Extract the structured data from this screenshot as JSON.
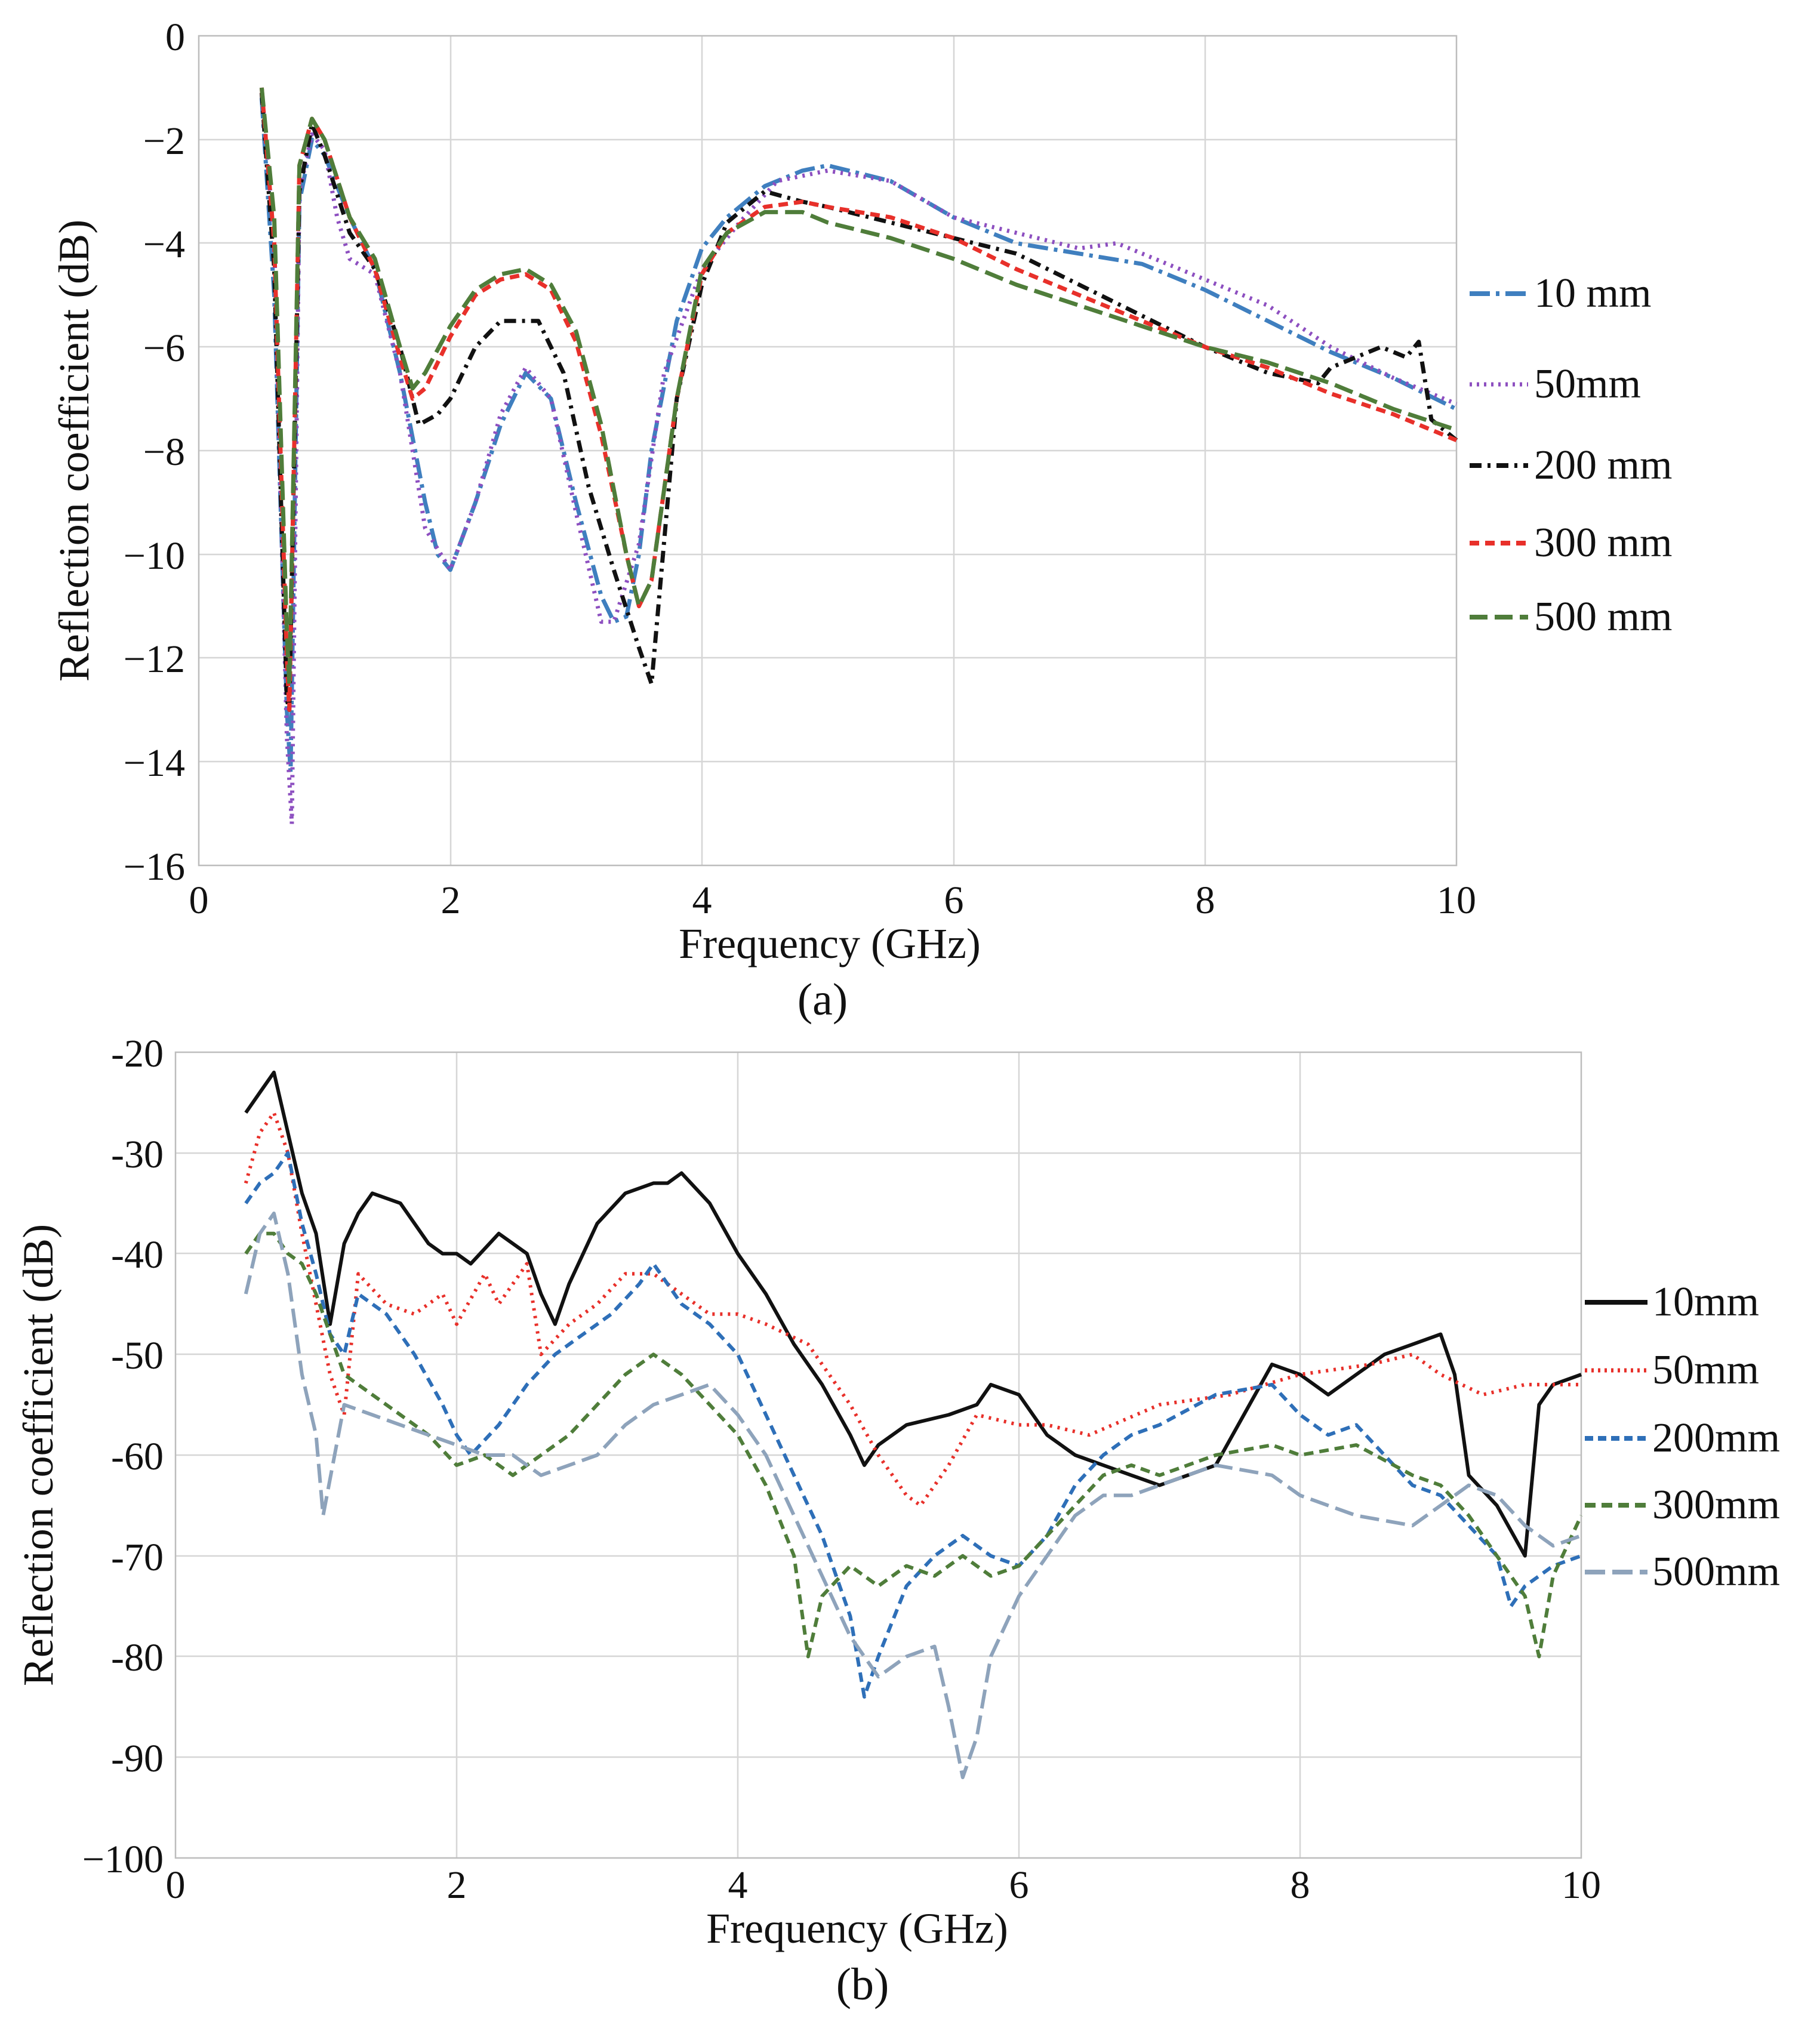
{
  "chart_data": [
    {
      "type": "line",
      "panel": "(a)",
      "xlabel": "Frequency (GHz)",
      "ylabel": "Reflection coefficient (dB)",
      "xlim": [
        0,
        10
      ],
      "ylim": [
        -16,
        0
      ],
      "xticks": [
        0,
        2,
        4,
        6,
        8,
        10
      ],
      "yticks": [
        0,
        -2,
        -4,
        -6,
        -8,
        -10,
        -12,
        -14,
        -16
      ],
      "ytick_labels": [
        "0",
        "−2",
        "−4",
        "−6",
        "−8",
        "−10",
        "−12",
        "−14",
        "−16"
      ],
      "grid": true,
      "legend_position": "right",
      "series": [
        {
          "name": "10 mm",
          "color": "#3f7fbf",
          "dash": "long-dash-dot",
          "x": [
            0.5,
            0.6,
            0.7,
            0.73,
            0.8,
            0.9,
            1.0,
            1.2,
            1.4,
            1.6,
            1.8,
            1.9,
            2.0,
            2.2,
            2.4,
            2.6,
            2.8,
            3.0,
            3.2,
            3.3,
            3.4,
            3.5,
            3.6,
            3.8,
            4.0,
            4.2,
            4.5,
            4.8,
            5.0,
            5.5,
            6.0,
            6.5,
            7.0,
            7.5,
            8.0,
            8.5,
            9.0,
            9.5,
            10.0
          ],
          "y": [
            -1.2,
            -5.0,
            -13.0,
            -14.2,
            -3.2,
            -2.0,
            -2.3,
            -3.5,
            -4.5,
            -6.5,
            -9.0,
            -10.0,
            -10.3,
            -9.0,
            -7.5,
            -6.5,
            -7.0,
            -9.0,
            -10.8,
            -11.3,
            -11.2,
            -10.0,
            -8.0,
            -5.5,
            -4.1,
            -3.5,
            -2.9,
            -2.6,
            -2.5,
            -2.8,
            -3.5,
            -4.0,
            -4.2,
            -4.4,
            -4.9,
            -5.5,
            -6.1,
            -6.6,
            -7.2
          ]
        },
        {
          "name": "50mm",
          "color": "#8d4fc0",
          "dash": "dotted",
          "x": [
            0.5,
            0.6,
            0.7,
            0.74,
            0.8,
            0.9,
            1.0,
            1.1,
            1.2,
            1.4,
            1.6,
            1.8,
            2.0,
            2.2,
            2.4,
            2.6,
            2.8,
            3.0,
            3.2,
            3.3,
            3.5,
            3.7,
            4.0,
            4.3,
            4.6,
            5.0,
            5.5,
            6.0,
            6.5,
            7.0,
            7.3,
            7.8,
            8.0,
            8.5,
            9.0,
            9.5,
            10.0
          ],
          "y": [
            -1.0,
            -4.0,
            -13.5,
            -15.2,
            -3.0,
            -1.9,
            -2.2,
            -3.5,
            -4.3,
            -4.6,
            -6.5,
            -9.5,
            -10.3,
            -9.0,
            -7.3,
            -6.4,
            -7.0,
            -9.2,
            -11.3,
            -11.3,
            -9.8,
            -6.5,
            -4.5,
            -3.6,
            -2.8,
            -2.6,
            -2.8,
            -3.5,
            -3.8,
            -4.1,
            -4.0,
            -4.5,
            -4.7,
            -5.2,
            -6.0,
            -6.6,
            -7.1
          ]
        },
        {
          "name": "200 mm",
          "color": "#111111",
          "dash": "dash-dot",
          "x": [
            0.5,
            0.6,
            0.7,
            0.72,
            0.8,
            0.9,
            1.0,
            1.2,
            1.4,
            1.6,
            1.75,
            1.9,
            2.0,
            2.2,
            2.4,
            2.6,
            2.7,
            2.9,
            3.1,
            3.3,
            3.5,
            3.6,
            3.8,
            4.0,
            4.2,
            4.5,
            4.8,
            5.0,
            5.5,
            6.0,
            6.5,
            7.0,
            7.5,
            8.0,
            8.5,
            8.9,
            9.0,
            9.2,
            9.4,
            9.6,
            9.7,
            9.8,
            10.0
          ],
          "y": [
            -1.1,
            -4.5,
            -12.8,
            -13.0,
            -3.0,
            -1.7,
            -2.3,
            -3.8,
            -4.5,
            -6.0,
            -7.5,
            -7.3,
            -7.0,
            -6.0,
            -5.5,
            -5.5,
            -5.5,
            -6.5,
            -8.7,
            -10.3,
            -11.8,
            -12.5,
            -7.0,
            -4.8,
            -3.6,
            -3.0,
            -3.2,
            -3.3,
            -3.6,
            -3.9,
            -4.2,
            -4.8,
            -5.4,
            -6.0,
            -6.5,
            -6.7,
            -6.4,
            -6.2,
            -6.0,
            -6.2,
            -5.9,
            -7.4,
            -7.8
          ]
        },
        {
          "name": "300 mm",
          "color": "#e8302a",
          "dash": "short-dash",
          "x": [
            0.5,
            0.6,
            0.7,
            0.72,
            0.8,
            0.9,
            1.0,
            1.2,
            1.4,
            1.6,
            1.7,
            1.8,
            2.0,
            2.2,
            2.4,
            2.6,
            2.8,
            3.0,
            3.2,
            3.4,
            3.5,
            3.6,
            3.8,
            4.0,
            4.2,
            4.5,
            4.8,
            5.0,
            5.5,
            6.0,
            6.5,
            7.0,
            7.5,
            8.0,
            8.5,
            9.0,
            9.5,
            10.0
          ],
          "y": [
            -1.0,
            -4.0,
            -12.0,
            -13.0,
            -2.5,
            -1.6,
            -2.0,
            -3.5,
            -4.5,
            -6.2,
            -7.0,
            -6.8,
            -5.8,
            -5.0,
            -4.7,
            -4.6,
            -4.9,
            -5.9,
            -7.7,
            -10.0,
            -11.0,
            -10.5,
            -7.0,
            -4.6,
            -3.8,
            -3.3,
            -3.2,
            -3.3,
            -3.5,
            -3.9,
            -4.5,
            -5.0,
            -5.5,
            -6.0,
            -6.4,
            -6.9,
            -7.3,
            -7.8
          ]
        },
        {
          "name": "500 mm",
          "color": "#4f7d3a",
          "dash": "long-dash",
          "x": [
            0.5,
            0.6,
            0.7,
            0.72,
            0.8,
            0.9,
            1.0,
            1.2,
            1.4,
            1.6,
            1.7,
            1.8,
            2.0,
            2.2,
            2.4,
            2.6,
            2.8,
            3.0,
            3.2,
            3.4,
            3.5,
            3.6,
            3.8,
            4.0,
            4.2,
            4.5,
            4.8,
            5.0,
            5.5,
            6.0,
            6.5,
            7.0,
            7.5,
            8.0,
            8.5,
            9.0,
            9.5,
            10.0
          ],
          "y": [
            -1.0,
            -3.5,
            -11.5,
            -12.5,
            -2.5,
            -1.6,
            -2.0,
            -3.5,
            -4.3,
            -6.0,
            -6.8,
            -6.5,
            -5.6,
            -4.9,
            -4.6,
            -4.5,
            -4.8,
            -5.7,
            -7.5,
            -10.0,
            -11.0,
            -10.5,
            -7.0,
            -4.5,
            -3.8,
            -3.4,
            -3.4,
            -3.6,
            -3.9,
            -4.3,
            -4.8,
            -5.2,
            -5.6,
            -6.0,
            -6.3,
            -6.7,
            -7.2,
            -7.6
          ]
        }
      ]
    },
    {
      "type": "line",
      "panel": "(b)",
      "xlabel": "Frequency (GHz)",
      "ylabel": "Reflection coefficient (dB)",
      "xlim": [
        0,
        10
      ],
      "ylim": [
        -100,
        -20
      ],
      "xticks": [
        0,
        2,
        4,
        6,
        8,
        10
      ],
      "yticks": [
        -20,
        -30,
        -40,
        -50,
        -60,
        -70,
        -80,
        -90,
        -100
      ],
      "ytick_labels": [
        "-20",
        "-30",
        "-40",
        "-50",
        "-60",
        "-70",
        "-80",
        "-90",
        "−100"
      ],
      "grid": true,
      "legend_position": "right",
      "series": [
        {
          "name": "10mm",
          "color": "#111111",
          "dash": "solid",
          "x": [
            0.5,
            0.6,
            0.7,
            0.8,
            0.9,
            1.0,
            1.1,
            1.2,
            1.3,
            1.4,
            1.6,
            1.8,
            1.9,
            2.0,
            2.1,
            2.3,
            2.5,
            2.6,
            2.7,
            2.8,
            3.0,
            3.2,
            3.4,
            3.5,
            3.6,
            3.8,
            4.0,
            4.2,
            4.4,
            4.6,
            4.8,
            4.9,
            5.0,
            5.2,
            5.5,
            5.7,
            5.8,
            6.0,
            6.2,
            6.4,
            6.6,
            6.8,
            7.0,
            7.2,
            7.4,
            7.6,
            7.8,
            8.0,
            8.2,
            8.4,
            8.6,
            8.8,
            9.0,
            9.1,
            9.2,
            9.4,
            9.6,
            9.7,
            9.8,
            10.0
          ],
          "y": [
            -26,
            -24,
            -22,
            -28,
            -34,
            -38,
            -47,
            -39,
            -36,
            -34,
            -35,
            -39,
            -40,
            -40,
            -41,
            -38,
            -40,
            -44,
            -47,
            -43,
            -37,
            -34,
            -33,
            -33,
            -32,
            -35,
            -40,
            -44,
            -49,
            -53,
            -58,
            -61,
            -59,
            -57,
            -56,
            -55,
            -53,
            -54,
            -58,
            -60,
            -61,
            -62,
            -63,
            -62,
            -61,
            -56,
            -51,
            -52,
            -54,
            -52,
            -50,
            -49,
            -48,
            -52,
            -62,
            -65,
            -70,
            -55,
            -53,
            -52
          ]
        },
        {
          "name": "50mm",
          "color": "#e8302a",
          "dash": "dotted",
          "x": [
            0.5,
            0.6,
            0.7,
            0.8,
            0.9,
            1.0,
            1.1,
            1.2,
            1.3,
            1.5,
            1.7,
            1.9,
            2.0,
            2.2,
            2.3,
            2.5,
            2.6,
            2.8,
            3.0,
            3.2,
            3.4,
            3.6,
            3.8,
            4.0,
            4.2,
            4.5,
            4.8,
            5.0,
            5.2,
            5.3,
            5.5,
            5.7,
            6.0,
            6.2,
            6.5,
            7.0,
            7.5,
            8.0,
            8.5,
            8.8,
            9.0,
            9.3,
            9.6,
            10.0
          ],
          "y": [
            -33,
            -28,
            -26,
            -30,
            -38,
            -45,
            -52,
            -56,
            -42,
            -45,
            -46,
            -44,
            -47,
            -42,
            -45,
            -41,
            -50,
            -47,
            -45,
            -42,
            -42,
            -44,
            -46,
            -46,
            -47,
            -49,
            -55,
            -60,
            -64,
            -65,
            -61,
            -56,
            -57,
            -57,
            -58,
            -55,
            -54,
            -52,
            -51,
            -50,
            -52,
            -54,
            -53,
            -53
          ]
        },
        {
          "name": "200mm",
          "color": "#2e6fb8",
          "dash": "short-dash",
          "x": [
            0.5,
            0.6,
            0.7,
            0.8,
            0.9,
            1.0,
            1.1,
            1.2,
            1.3,
            1.5,
            1.7,
            1.9,
            2.0,
            2.1,
            2.3,
            2.5,
            2.7,
            2.9,
            3.1,
            3.3,
            3.4,
            3.6,
            3.8,
            4.0,
            4.2,
            4.4,
            4.6,
            4.8,
            4.9,
            5.0,
            5.2,
            5.4,
            5.6,
            5.8,
            6.0,
            6.2,
            6.4,
            6.6,
            6.8,
            7.0,
            7.4,
            7.8,
            8.0,
            8.2,
            8.4,
            8.6,
            8.8,
            9.0,
            9.2,
            9.4,
            9.5,
            9.6,
            9.8,
            10.0
          ],
          "y": [
            -35,
            -33,
            -32,
            -30,
            -37,
            -42,
            -48,
            -50,
            -44,
            -46,
            -50,
            -55,
            -58,
            -60,
            -57,
            -53,
            -50,
            -48,
            -46,
            -43,
            -41,
            -45,
            -47,
            -50,
            -56,
            -62,
            -68,
            -76,
            -84,
            -80,
            -73,
            -70,
            -68,
            -70,
            -71,
            -68,
            -63,
            -60,
            -58,
            -57,
            -54,
            -53,
            -56,
            -58,
            -57,
            -60,
            -63,
            -64,
            -67,
            -70,
            -75,
            -73,
            -71,
            -70
          ]
        },
        {
          "name": "300mm",
          "color": "#4f7d3a",
          "dash": "short-dash",
          "x": [
            0.5,
            0.6,
            0.7,
            0.8,
            0.9,
            1.0,
            1.1,
            1.2,
            1.4,
            1.6,
            1.8,
            2.0,
            2.2,
            2.4,
            2.6,
            2.8,
            3.0,
            3.2,
            3.4,
            3.6,
            3.8,
            4.0,
            4.2,
            4.4,
            4.5,
            4.6,
            4.8,
            5.0,
            5.2,
            5.4,
            5.6,
            5.8,
            6.0,
            6.2,
            6.4,
            6.6,
            6.8,
            7.0,
            7.4,
            7.8,
            8.0,
            8.4,
            8.8,
            9.0,
            9.2,
            9.4,
            9.6,
            9.7,
            9.8,
            10.0
          ],
          "y": [
            -40,
            -38,
            -38,
            -40,
            -41,
            -44,
            -48,
            -52,
            -54,
            -56,
            -58,
            -61,
            -60,
            -62,
            -60,
            -58,
            -55,
            -52,
            -50,
            -52,
            -55,
            -58,
            -63,
            -70,
            -80,
            -74,
            -71,
            -73,
            -71,
            -72,
            -70,
            -72,
            -71,
            -68,
            -65,
            -62,
            -61,
            -62,
            -60,
            -59,
            -60,
            -59,
            -62,
            -63,
            -66,
            -70,
            -74,
            -80,
            -72,
            -66
          ]
        },
        {
          "name": "500mm",
          "color": "#8ea3bb",
          "dash": "long-dash",
          "x": [
            0.5,
            0.6,
            0.7,
            0.8,
            0.9,
            1.0,
            1.05,
            1.2,
            1.4,
            1.6,
            1.8,
            2.0,
            2.2,
            2.4,
            2.6,
            2.8,
            3.0,
            3.2,
            3.4,
            3.6,
            3.8,
            4.0,
            4.2,
            4.4,
            4.6,
            4.8,
            5.0,
            5.2,
            5.4,
            5.5,
            5.6,
            5.7,
            5.8,
            6.0,
            6.2,
            6.4,
            6.6,
            6.8,
            7.0,
            7.4,
            7.8,
            8.0,
            8.4,
            8.8,
            9.0,
            9.2,
            9.4,
            9.6,
            9.8,
            10.0
          ],
          "y": [
            -44,
            -38,
            -36,
            -42,
            -52,
            -58,
            -66,
            -55,
            -56,
            -57,
            -58,
            -59,
            -60,
            -60,
            -62,
            -61,
            -60,
            -57,
            -55,
            -54,
            -53,
            -56,
            -60,
            -66,
            -72,
            -78,
            -82,
            -80,
            -79,
            -85,
            -92,
            -88,
            -80,
            -74,
            -70,
            -66,
            -64,
            -64,
            -63,
            -61,
            -62,
            -64,
            -66,
            -67,
            -65,
            -63,
            -64,
            -67,
            -69,
            -68
          ]
        }
      ]
    }
  ],
  "captions": {
    "a": "(a)",
    "b": "(b)"
  }
}
